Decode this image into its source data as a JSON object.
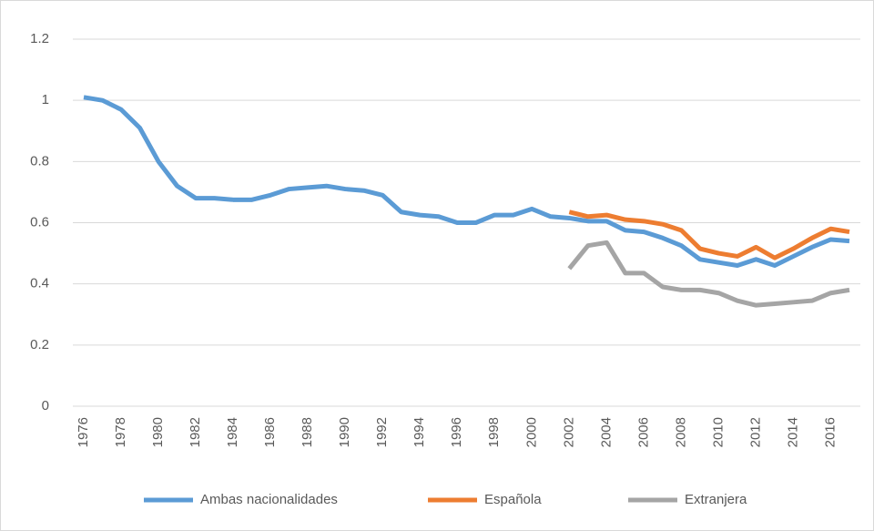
{
  "chart_data": {
    "type": "line",
    "x": [
      1976,
      1977,
      1978,
      1979,
      1980,
      1981,
      1982,
      1983,
      1984,
      1985,
      1986,
      1987,
      1988,
      1989,
      1990,
      1991,
      1992,
      1993,
      1994,
      1995,
      1996,
      1997,
      1998,
      1999,
      2000,
      2001,
      2002,
      2003,
      2004,
      2005,
      2006,
      2007,
      2008,
      2009,
      2010,
      2011,
      2012,
      2013,
      2014,
      2015,
      2016,
      2017
    ],
    "xlim": [
      1976,
      2017
    ],
    "xticks": [
      1976,
      1978,
      1980,
      1982,
      1984,
      1986,
      1988,
      1990,
      1992,
      1994,
      1996,
      1998,
      2000,
      2002,
      2004,
      2006,
      2008,
      2010,
      2012,
      2014,
      2016
    ],
    "ylim": [
      0,
      1.2
    ],
    "yticks": [
      0,
      0.2,
      0.4,
      0.6,
      0.8,
      1,
      1.2
    ],
    "grid": true,
    "legend": "bottom",
    "series": [
      {
        "name": "Ambas nacionalidades",
        "color": "#5b9bd5",
        "values": [
          1.01,
          1.0,
          0.97,
          0.91,
          0.8,
          0.72,
          0.68,
          0.68,
          0.675,
          0.675,
          0.69,
          0.71,
          0.715,
          0.72,
          0.71,
          0.705,
          0.69,
          0.635,
          0.625,
          0.62,
          0.6,
          0.6,
          0.625,
          0.625,
          0.645,
          0.62,
          0.615,
          0.605,
          0.605,
          0.575,
          0.57,
          0.55,
          0.525,
          0.48,
          0.47,
          0.46,
          0.48,
          0.46,
          0.49,
          0.52,
          0.545,
          0.54
        ]
      },
      {
        "name": "Española",
        "color": "#ed7d31",
        "values": [
          null,
          null,
          null,
          null,
          null,
          null,
          null,
          null,
          null,
          null,
          null,
          null,
          null,
          null,
          null,
          null,
          null,
          null,
          null,
          null,
          null,
          null,
          null,
          null,
          null,
          null,
          0.635,
          0.62,
          0.625,
          0.61,
          0.605,
          0.595,
          0.575,
          0.515,
          0.5,
          0.49,
          0.52,
          0.485,
          0.515,
          0.55,
          0.58,
          0.57
        ]
      },
      {
        "name": "Extranjera",
        "color": "#a5a5a5",
        "values": [
          null,
          null,
          null,
          null,
          null,
          null,
          null,
          null,
          null,
          null,
          null,
          null,
          null,
          null,
          null,
          null,
          null,
          null,
          null,
          null,
          null,
          null,
          null,
          null,
          null,
          null,
          0.45,
          0.525,
          0.535,
          0.435,
          0.435,
          0.39,
          0.38,
          0.38,
          0.37,
          0.345,
          0.33,
          0.335,
          0.34,
          0.345,
          0.37,
          0.38
        ]
      }
    ]
  }
}
